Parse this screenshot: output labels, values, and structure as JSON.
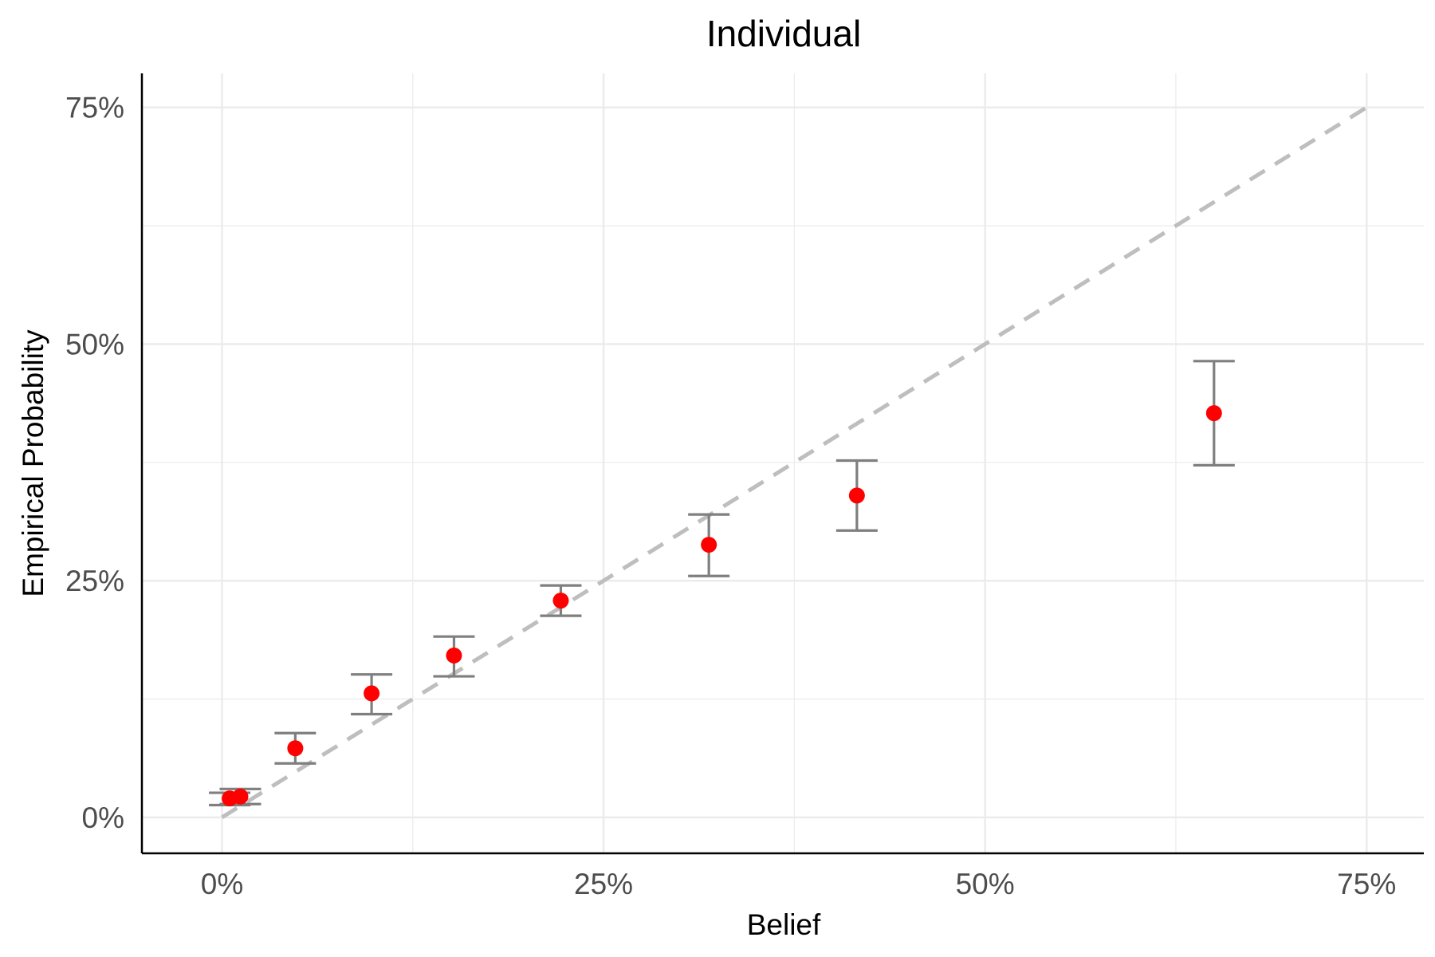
{
  "chart_data": {
    "type": "scatter",
    "title": "Individual",
    "xlabel": "Belief",
    "ylabel": "Empirical Probability",
    "xlim": [
      -0.0525,
      0.7875
    ],
    "ylim": [
      -0.038,
      0.786
    ],
    "x_ticks": [
      0,
      0.25,
      0.5,
      0.75
    ],
    "x_tick_labels": [
      "0%",
      "25%",
      "50%",
      "75%"
    ],
    "y_ticks": [
      0,
      0.25,
      0.5,
      0.75
    ],
    "y_tick_labels": [
      "0%",
      "25%",
      "50%",
      "75%"
    ],
    "grid": true,
    "reference_line": {
      "from": [
        0,
        0
      ],
      "to": [
        0.75,
        0.75
      ],
      "style": "dashed",
      "color": "#bebebe"
    },
    "point_color": "#ff0000",
    "errorbar_color": "#7f7f7f",
    "points": [
      {
        "x": 0.005,
        "y": 0.02,
        "ymin": 0.013,
        "ymax": 0.026
      },
      {
        "x": 0.012,
        "y": 0.022,
        "ymin": 0.014,
        "ymax": 0.03
      },
      {
        "x": 0.048,
        "y": 0.073,
        "ymin": 0.057,
        "ymax": 0.089
      },
      {
        "x": 0.098,
        "y": 0.131,
        "ymin": 0.109,
        "ymax": 0.151
      },
      {
        "x": 0.152,
        "y": 0.171,
        "ymin": 0.149,
        "ymax": 0.191
      },
      {
        "x": 0.222,
        "y": 0.229,
        "ymin": 0.213,
        "ymax": 0.245
      },
      {
        "x": 0.319,
        "y": 0.288,
        "ymin": 0.255,
        "ymax": 0.32
      },
      {
        "x": 0.416,
        "y": 0.34,
        "ymin": 0.303,
        "ymax": 0.377
      },
      {
        "x": 0.65,
        "y": 0.427,
        "ymin": 0.372,
        "ymax": 0.482
      }
    ]
  }
}
